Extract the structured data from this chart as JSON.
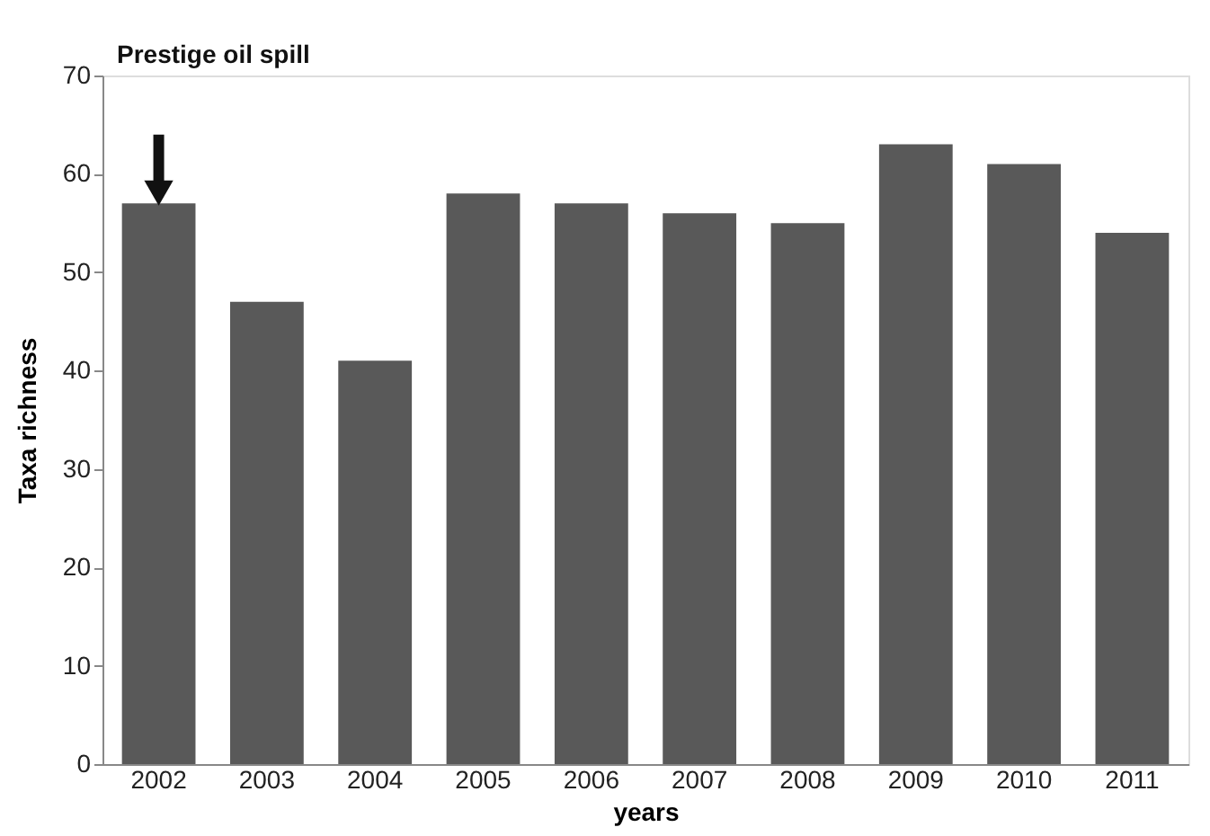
{
  "chart_data": {
    "type": "bar",
    "categories": [
      "2002",
      "2003",
      "2004",
      "2005",
      "2006",
      "2007",
      "2008",
      "2009",
      "2010",
      "2011"
    ],
    "values": [
      57,
      47,
      41,
      58,
      57,
      56,
      55,
      63,
      61,
      54
    ],
    "color": "#595959",
    "xlabel": "years",
    "ylabel": "Taxa richness",
    "ylim": [
      0,
      70
    ],
    "yticks": [
      0,
      10,
      20,
      30,
      40,
      50,
      60,
      70
    ],
    "grid": false,
    "annotations": [
      "Prestige oil spill"
    ]
  }
}
